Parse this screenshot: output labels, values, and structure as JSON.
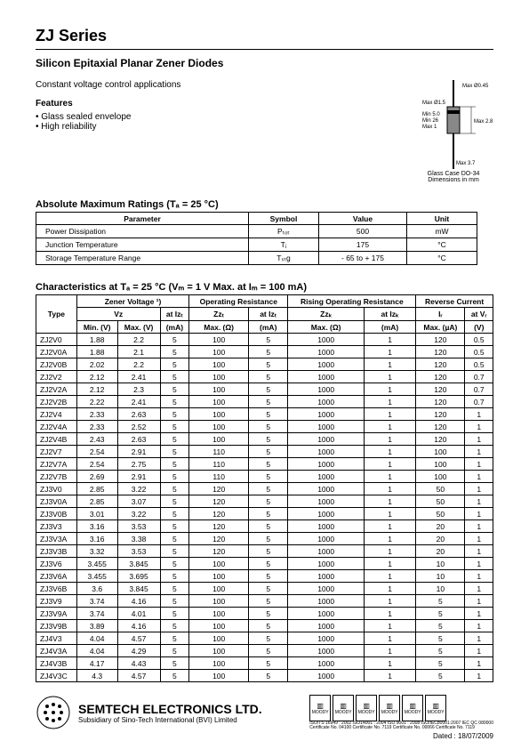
{
  "header": {
    "series": "ZJ Series",
    "subtitle": "Silicon Epitaxial Planar Zener Diodes",
    "app_note": "Constant voltage control applications",
    "features_label": "Features",
    "features": [
      "Glass sealed envelope",
      "High reliability"
    ]
  },
  "package_diagram": {
    "caption1": "Glass Case DO-34",
    "caption2": "Dimensions in mm",
    "labels": {
      "max_045": "Max Ø0.45",
      "max_15": "Max Ø1.5",
      "min_5": "Min 5.0",
      "min_26": "Min 26",
      "max1": "Max 1",
      "min1": "Min 1",
      "max28": "Max 2.8",
      "max_37": "Max 3.7"
    },
    "colors": {
      "line": "#000000",
      "body": "#888888"
    }
  },
  "abs_max": {
    "heading": "Absolute Maximum Ratings (Tₐ = 25 °C)",
    "columns": [
      "Parameter",
      "Symbol",
      "Value",
      "Unit"
    ],
    "rows": [
      {
        "param": "Power Dissipation",
        "symbol": "Pₜₒₜ",
        "value": "500",
        "unit": "mW"
      },
      {
        "param": "Junction Temperature",
        "symbol": "Tⱼ",
        "value": "175",
        "unit": "°C"
      },
      {
        "param": "Storage Temperature Range",
        "symbol": "Tₛₜg",
        "value": "- 65 to + 175",
        "unit": "°C"
      }
    ]
  },
  "characteristics": {
    "heading": "Characteristics at Tₐ = 25 °C (Vₘ = 1 V Max. at Iₘ = 100 mA)",
    "group_headers": [
      "Type",
      "Zener Voltage ¹)",
      "Operating Resistance",
      "Rising Operating Resistance",
      "Reverse Current"
    ],
    "sub_headers": {
      "zener": [
        "Vz",
        "at Izₜ"
      ],
      "operating": [
        "Zzₜ",
        "at Izₜ"
      ],
      "rising": [
        "Zzₖ",
        "at Izₖ"
      ],
      "reverse": [
        "Iᵣ",
        "at Vᵣ"
      ]
    },
    "unit_headers": [
      "Min. (V)",
      "Max. (V)",
      "(mA)",
      "Max. (Ω)",
      "(mA)",
      "Max. (Ω)",
      "(mA)",
      "Max. (µA)",
      "(V)"
    ],
    "rows": [
      [
        "ZJ2V0",
        "1.88",
        "2.2",
        "5",
        "100",
        "5",
        "1000",
        "1",
        "120",
        "0.5"
      ],
      [
        "ZJ2V0A",
        "1.88",
        "2.1",
        "5",
        "100",
        "5",
        "1000",
        "1",
        "120",
        "0.5"
      ],
      [
        "ZJ2V0B",
        "2.02",
        "2.2",
        "5",
        "100",
        "5",
        "1000",
        "1",
        "120",
        "0.5"
      ],
      [
        "ZJ2V2",
        "2.12",
        "2.41",
        "5",
        "100",
        "5",
        "1000",
        "1",
        "120",
        "0.7"
      ],
      [
        "ZJ2V2A",
        "2.12",
        "2.3",
        "5",
        "100",
        "5",
        "1000",
        "1",
        "120",
        "0.7"
      ],
      [
        "ZJ2V2B",
        "2.22",
        "2.41",
        "5",
        "100",
        "5",
        "1000",
        "1",
        "120",
        "0.7"
      ],
      [
        "ZJ2V4",
        "2.33",
        "2.63",
        "5",
        "100",
        "5",
        "1000",
        "1",
        "120",
        "1"
      ],
      [
        "ZJ2V4A",
        "2.33",
        "2.52",
        "5",
        "100",
        "5",
        "1000",
        "1",
        "120",
        "1"
      ],
      [
        "ZJ2V4B",
        "2.43",
        "2.63",
        "5",
        "100",
        "5",
        "1000",
        "1",
        "120",
        "1"
      ],
      [
        "ZJ2V7",
        "2.54",
        "2.91",
        "5",
        "110",
        "5",
        "1000",
        "1",
        "100",
        "1"
      ],
      [
        "ZJ2V7A",
        "2.54",
        "2.75",
        "5",
        "110",
        "5",
        "1000",
        "1",
        "100",
        "1"
      ],
      [
        "ZJ2V7B",
        "2.69",
        "2.91",
        "5",
        "110",
        "5",
        "1000",
        "1",
        "100",
        "1"
      ],
      [
        "ZJ3V0",
        "2.85",
        "3.22",
        "5",
        "120",
        "5",
        "1000",
        "1",
        "50",
        "1"
      ],
      [
        "ZJ3V0A",
        "2.85",
        "3.07",
        "5",
        "120",
        "5",
        "1000",
        "1",
        "50",
        "1"
      ],
      [
        "ZJ3V0B",
        "3.01",
        "3.22",
        "5",
        "120",
        "5",
        "1000",
        "1",
        "50",
        "1"
      ],
      [
        "ZJ3V3",
        "3.16",
        "3.53",
        "5",
        "120",
        "5",
        "1000",
        "1",
        "20",
        "1"
      ],
      [
        "ZJ3V3A",
        "3.16",
        "3.38",
        "5",
        "120",
        "5",
        "1000",
        "1",
        "20",
        "1"
      ],
      [
        "ZJ3V3B",
        "3.32",
        "3.53",
        "5",
        "120",
        "5",
        "1000",
        "1",
        "20",
        "1"
      ],
      [
        "ZJ3V6",
        "3.455",
        "3.845",
        "5",
        "100",
        "5",
        "1000",
        "1",
        "10",
        "1"
      ],
      [
        "ZJ3V6A",
        "3.455",
        "3.695",
        "5",
        "100",
        "5",
        "1000",
        "1",
        "10",
        "1"
      ],
      [
        "ZJ3V6B",
        "3.6",
        "3.845",
        "5",
        "100",
        "5",
        "1000",
        "1",
        "10",
        "1"
      ],
      [
        "ZJ3V9",
        "3.74",
        "4.16",
        "5",
        "100",
        "5",
        "1000",
        "1",
        "5",
        "1"
      ],
      [
        "ZJ3V9A",
        "3.74",
        "4.01",
        "5",
        "100",
        "5",
        "1000",
        "1",
        "5",
        "1"
      ],
      [
        "ZJ3V9B",
        "3.89",
        "4.16",
        "5",
        "100",
        "5",
        "1000",
        "1",
        "5",
        "1"
      ],
      [
        "ZJ4V3",
        "4.04",
        "4.57",
        "5",
        "100",
        "5",
        "1000",
        "1",
        "5",
        "1"
      ],
      [
        "ZJ4V3A",
        "4.04",
        "4.29",
        "5",
        "100",
        "5",
        "1000",
        "1",
        "5",
        "1"
      ],
      [
        "ZJ4V3B",
        "4.17",
        "4.43",
        "5",
        "100",
        "5",
        "1000",
        "1",
        "5",
        "1"
      ],
      [
        "ZJ4V3C",
        "4.3",
        "4.57",
        "5",
        "100",
        "5",
        "1000",
        "1",
        "5",
        "1"
      ]
    ]
  },
  "footer": {
    "company": "SEMTECH ELECTRONICS LTD.",
    "subsidiary": "Subsidiary of Sino-Tech International (BVI) Limited",
    "certs": [
      "MOODY",
      "MOODY",
      "MOODY",
      "MOODY",
      "MOODY",
      "MOODY"
    ],
    "cert_line1": "ISO/TS 16949 : 2002   ISO14001 : 2004   ISO 9001 : 2008   ISO/IEC80001:2007   IEC QC 080000",
    "cert_line2": "Certificate No. 04100   Certificate No. 7119   Certificate No. 00066   Certificate No. 7119",
    "dated": "Dated : 18/07/2009"
  }
}
